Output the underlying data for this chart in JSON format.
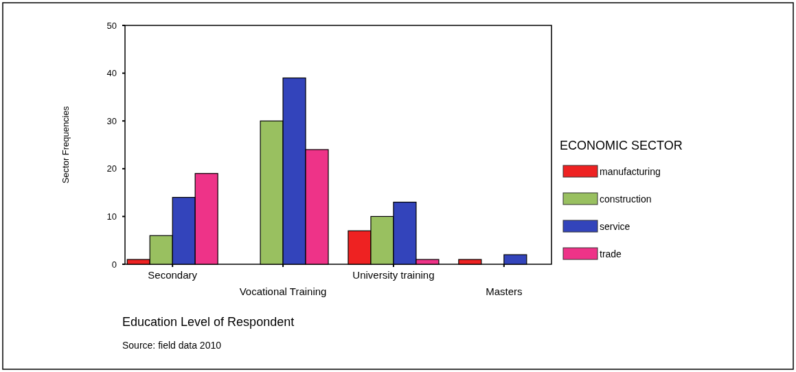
{
  "chart_data": {
    "type": "bar",
    "xlabel": "Education Level of Respondent",
    "ylabel": "Sector Frequencies",
    "legend_title": "ECONOMIC SECTOR",
    "categories": [
      "Secondary",
      "Vocational Training",
      "University training",
      "Masters"
    ],
    "series": [
      {
        "name": "manufacturing",
        "color": "#ee2222",
        "values": [
          1,
          0,
          7,
          1
        ]
      },
      {
        "name": "construction",
        "color": "#99c060",
        "values": [
          6,
          30,
          10,
          0
        ]
      },
      {
        "name": "service",
        "color": "#3344bb",
        "values": [
          14,
          39,
          13,
          2
        ]
      },
      {
        "name": "trade",
        "color": "#ee3388",
        "values": [
          19,
          24,
          1,
          0
        ]
      }
    ],
    "ylim": [
      0,
      50
    ],
    "yticks": [
      0,
      10,
      20,
      30,
      40,
      50
    ],
    "grid": false,
    "legend": "right",
    "annotations": [
      "Source: field data 2010"
    ]
  }
}
